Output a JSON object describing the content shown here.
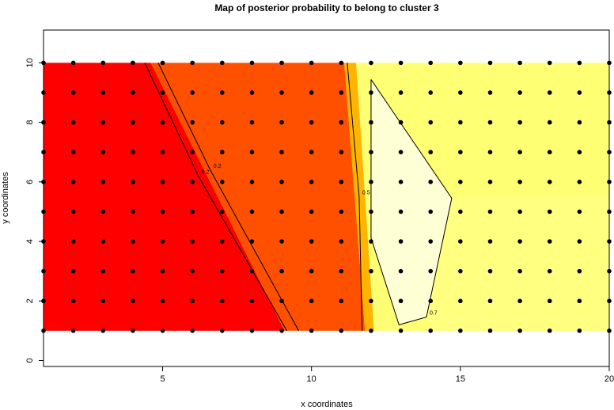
{
  "chart_data": {
    "type": "image-contour",
    "title": "Map of posterior probability to belong to cluster  3",
    "xlabel": "x coordinates",
    "ylabel": "y coordinates",
    "xlim": [
      1,
      20
    ],
    "ylim": [
      -0.2,
      11.1
    ],
    "xticks": [
      5,
      10,
      15,
      20
    ],
    "yticks": [
      0,
      2,
      4,
      6,
      8,
      10
    ],
    "regions": [
      {
        "color": "#ff0000",
        "x": [
          1,
          1,
          4.6,
          9.1
        ],
        "y": [
          1,
          10,
          10,
          1
        ]
      },
      {
        "color": "#ff5000",
        "x": [
          4.6,
          11.1,
          11.8,
          9.1
        ],
        "y": [
          10,
          10,
          1,
          1
        ]
      },
      {
        "color": "#ffb400",
        "x": [
          11.1,
          11.5,
          12.1,
          11.8
        ],
        "y": [
          10,
          10,
          1,
          1
        ]
      },
      {
        "color": "#ffff73",
        "x": [
          11.5,
          20,
          20,
          12.1
        ],
        "y": [
          10,
          10,
          1,
          1
        ]
      },
      {
        "color": "#ffff80",
        "x": [
          13.9,
          20,
          20,
          13.9
        ],
        "y": [
          5.5,
          5.5,
          1,
          1
        ]
      },
      {
        "color": "#ffffd6",
        "x": [
          12.0,
          14.71,
          13.86,
          12.94,
          12.0
        ],
        "y": [
          9.44,
          5.45,
          1.46,
          1.2,
          4.12
        ]
      }
    ],
    "contours": [
      {
        "level": 0.2,
        "x": [
          4.4,
          6.2,
          9.17
        ],
        "y": [
          10,
          6.2,
          1
        ]
      },
      {
        "level": 0.2,
        "x": [
          4.85,
          6.6,
          9.57
        ],
        "y": [
          10,
          6.4,
          1
        ]
      },
      {
        "level": 0.5,
        "x": [
          11.2,
          11.6,
          11.7
        ],
        "y": [
          10,
          5.5,
          1
        ]
      },
      {
        "level": 0.7,
        "x": [
          12.0,
          14.71,
          13.86,
          12.94,
          12.0,
          12.0
        ],
        "y": [
          9.44,
          5.45,
          1.46,
          1.2,
          4.12,
          9.44
        ]
      }
    ],
    "points": {
      "x": [
        1,
        2,
        3,
        4,
        5,
        6,
        7,
        8,
        9,
        10,
        11,
        12,
        13,
        14,
        15,
        16,
        17,
        18,
        19,
        20
      ],
      "y": [
        1,
        2,
        3,
        4,
        5,
        6,
        7,
        8,
        9,
        10
      ]
    }
  }
}
